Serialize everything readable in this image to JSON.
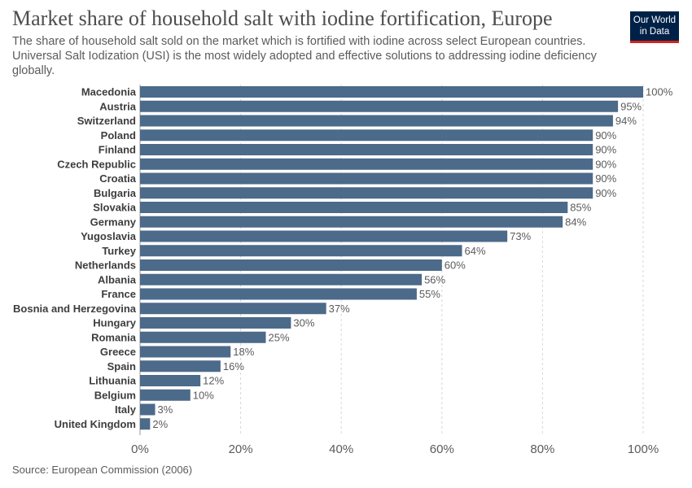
{
  "title": "Market share of household salt with iodine fortification, Europe",
  "subtitle": "The share of household salt sold on the market which is fortified with iodine across select European countries. Universal Salt Iodization (USI) is the most widely adopted and effective solutions to addressing iodine deficiency globally.",
  "source": "Source: European Commission (2006)",
  "logo": {
    "line1": "Our World",
    "line2": "in Data"
  },
  "colors": {
    "bar": "#4c6a8a",
    "grid": "#d7d7d7",
    "axis": "#9a9a9a",
    "logo_bg": "#002147",
    "logo_accent": "#ce261e"
  },
  "chart_data": {
    "type": "bar",
    "orientation": "horizontal",
    "categories": [
      "Macedonia",
      "Austria",
      "Switzerland",
      "Poland",
      "Finland",
      "Czech Republic",
      "Croatia",
      "Bulgaria",
      "Slovakia",
      "Germany",
      "Yugoslavia",
      "Turkey",
      "Netherlands",
      "Albania",
      "France",
      "Bosnia and Herzegovina",
      "Hungary",
      "Romania",
      "Greece",
      "Spain",
      "Lithuania",
      "Belgium",
      "Italy",
      "United Kingdom"
    ],
    "values": [
      100,
      95,
      94,
      90,
      90,
      90,
      90,
      90,
      85,
      84,
      73,
      64,
      60,
      56,
      55,
      37,
      30,
      25,
      18,
      16,
      12,
      10,
      3,
      2
    ],
    "value_suffix": "%",
    "xlim": [
      0,
      100
    ],
    "xticks": [
      0,
      20,
      40,
      60,
      80,
      100
    ],
    "xtick_labels": [
      "0%",
      "20%",
      "40%",
      "60%",
      "80%",
      "100%"
    ],
    "grid": true
  }
}
